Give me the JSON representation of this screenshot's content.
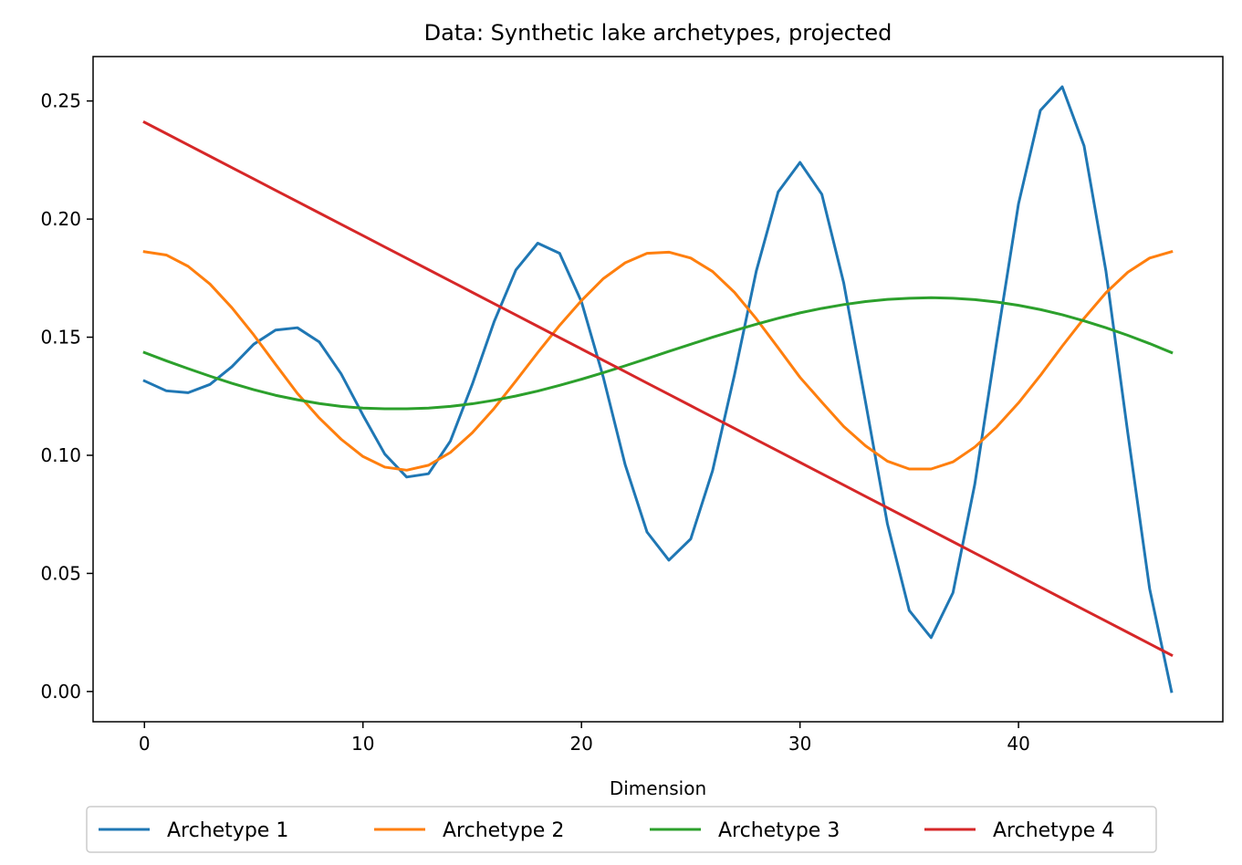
{
  "chart_data": {
    "type": "line",
    "title": "Data: Synthetic lake archetypes, projected",
    "xlabel": "Dimension",
    "ylabel": "",
    "xlim": [
      -2.35,
      49.35
    ],
    "ylim": [
      -0.0128,
      0.2688
    ],
    "xticks": [
      0,
      10,
      20,
      30,
      40
    ],
    "xtick_labels": [
      "0",
      "10",
      "20",
      "30",
      "40"
    ],
    "yticks": [
      0.0,
      0.05,
      0.1,
      0.15,
      0.2,
      0.25
    ],
    "ytick_labels": [
      "0.00",
      "0.05",
      "0.10",
      "0.15",
      "0.20",
      "0.25"
    ],
    "grid": false,
    "legend_position": "bottom, below axes, 4 columns",
    "x": [
      0,
      1,
      2,
      3,
      4,
      5,
      6,
      7,
      8,
      9,
      10,
      11,
      12,
      13,
      14,
      15,
      16,
      17,
      18,
      19,
      20,
      21,
      22,
      23,
      24,
      25,
      26,
      27,
      28,
      29,
      30,
      31,
      32,
      33,
      34,
      35,
      36,
      37,
      38,
      39,
      40,
      41,
      42,
      43,
      44,
      45,
      46,
      47
    ],
    "series": [
      {
        "name": "Archetype 1",
        "color": "#1f77b4",
        "values": [
          0.1315,
          0.1273,
          0.1265,
          0.13,
          0.1375,
          0.147,
          0.153,
          0.154,
          0.148,
          0.1345,
          0.117,
          0.1005,
          0.0908,
          0.0922,
          0.106,
          0.13,
          0.1565,
          0.1785,
          0.1898,
          0.1855,
          0.165,
          0.133,
          0.096,
          0.0675,
          0.0556,
          0.0646,
          0.0935,
          0.134,
          0.178,
          0.2115,
          0.224,
          0.2105,
          0.173,
          0.1225,
          0.071,
          0.0343,
          0.0228,
          0.0418,
          0.0878,
          0.148,
          0.2065,
          0.246,
          0.256,
          0.231,
          0.178,
          0.1095,
          0.0435,
          0.0
        ]
      },
      {
        "name": "Archetype 2",
        "color": "#ff7f0e",
        "values": [
          0.1862,
          0.1848,
          0.18,
          0.1725,
          0.1625,
          0.151,
          0.1385,
          0.1262,
          0.1158,
          0.1068,
          0.0995,
          0.095,
          0.0937,
          0.0958,
          0.1012,
          0.1095,
          0.1198,
          0.1315,
          0.1435,
          0.155,
          0.1655,
          0.1748,
          0.1815,
          0.1855,
          0.186,
          0.1835,
          0.1778,
          0.169,
          0.1578,
          0.1455,
          0.133,
          0.1225,
          0.1122,
          0.104,
          0.0975,
          0.0942,
          0.0942,
          0.0972,
          0.1035,
          0.112,
          0.1222,
          0.1338,
          0.1462,
          0.158,
          0.1688,
          0.1775,
          0.1835,
          0.1862
        ]
      },
      {
        "name": "Archetype 3",
        "color": "#2ca02c",
        "values": [
          0.1435,
          0.14,
          0.1367,
          0.1335,
          0.1305,
          0.1278,
          0.1254,
          0.1235,
          0.1219,
          0.1207,
          0.12,
          0.1197,
          0.1197,
          0.12,
          0.1207,
          0.1218,
          0.1233,
          0.1251,
          0.1272,
          0.1296,
          0.1322,
          0.135,
          0.1379,
          0.1409,
          0.144,
          0.147,
          0.15,
          0.1528,
          0.1555,
          0.158,
          0.1603,
          0.1622,
          0.1638,
          0.1651,
          0.166,
          0.1665,
          0.1667,
          0.1665,
          0.1659,
          0.1649,
          0.1635,
          0.1617,
          0.1595,
          0.1569,
          0.154,
          0.1508,
          0.1473,
          0.1435
        ]
      },
      {
        "name": "Archetype 4",
        "color": "#d62728",
        "values": [
          0.241,
          0.2362,
          0.2314,
          0.2266,
          0.2218,
          0.217,
          0.2122,
          0.2074,
          0.2026,
          0.1978,
          0.193,
          0.1882,
          0.1834,
          0.1786,
          0.1738,
          0.169,
          0.1642,
          0.1594,
          0.1546,
          0.1498,
          0.145,
          0.1402,
          0.1354,
          0.1306,
          0.1258,
          0.121,
          0.1162,
          0.1114,
          0.1066,
          0.1018,
          0.097,
          0.0922,
          0.0874,
          0.0826,
          0.0778,
          0.073,
          0.0682,
          0.0634,
          0.0586,
          0.0538,
          0.049,
          0.0442,
          0.0394,
          0.0346,
          0.0298,
          0.025,
          0.0202,
          0.0154
        ]
      }
    ]
  }
}
